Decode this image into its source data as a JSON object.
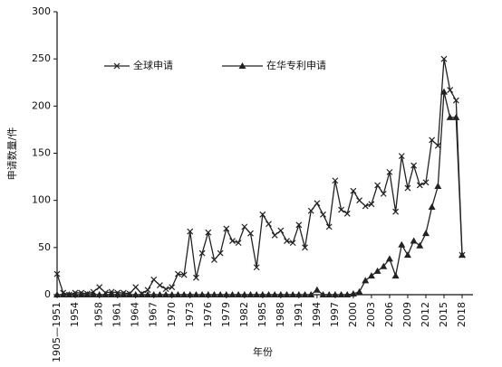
{
  "chart_data": {
    "type": "line",
    "xlabel": "年份",
    "ylabel": "申请数量/件",
    "categories": [
      "1905—1951",
      null,
      null,
      "1954",
      null,
      null,
      null,
      "1958",
      null,
      null,
      "1961",
      null,
      null,
      "1964",
      null,
      null,
      "1967",
      null,
      null,
      "1970",
      null,
      null,
      "1973",
      null,
      null,
      "1976",
      null,
      null,
      "1979",
      null,
      null,
      "1982",
      null,
      null,
      "1985",
      null,
      null,
      "1988",
      null,
      null,
      "1991",
      null,
      null,
      "1994",
      null,
      null,
      "1997",
      null,
      null,
      "2000",
      null,
      null,
      "2003",
      null,
      null,
      "2006",
      null,
      null,
      "2009",
      null,
      null,
      "2012",
      null,
      null,
      "2015",
      null,
      null,
      "2018"
    ],
    "series": [
      {
        "name": "全球申请",
        "color": "#222222",
        "marker": "x",
        "values": [
          22,
          2,
          0,
          2,
          2,
          1,
          3,
          8,
          2,
          3,
          2,
          2,
          1,
          8,
          1,
          5,
          16,
          10,
          6,
          8,
          22,
          21,
          67,
          18,
          44,
          66,
          37,
          44,
          70,
          57,
          55,
          72,
          65,
          29,
          85,
          75,
          63,
          68,
          57,
          55,
          74,
          50,
          89,
          97,
          85,
          72,
          121,
          90,
          86,
          110,
          100,
          94,
          96,
          116,
          107,
          130,
          88,
          147,
          113,
          137,
          116,
          119,
          164,
          158,
          250,
          217,
          206,
          42
        ]
      },
      {
        "name": "在华专利申请",
        "color": "#222222",
        "marker": "triangle",
        "values": [
          0,
          0,
          0,
          0,
          0,
          0,
          0,
          0,
          0,
          0,
          0,
          0,
          0,
          0,
          0,
          0,
          0,
          0,
          0,
          0,
          0,
          0,
          0,
          0,
          0,
          0,
          0,
          0,
          0,
          0,
          0,
          0,
          0,
          0,
          0,
          0,
          0,
          0,
          0,
          0,
          0,
          0,
          0,
          5,
          0,
          0,
          0,
          0,
          0,
          1,
          3,
          15,
          20,
          25,
          30,
          38,
          20,
          53,
          42,
          57,
          52,
          65,
          93,
          115,
          215,
          188,
          188,
          42
        ]
      }
    ],
    "ylim": [
      0,
      300
    ],
    "yticks": [
      0,
      50,
      100,
      150,
      200,
      250,
      300
    ],
    "grid": false
  }
}
